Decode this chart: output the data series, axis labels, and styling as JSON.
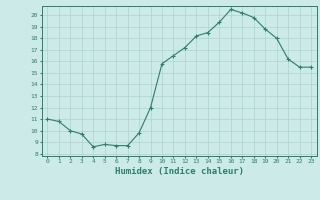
{
  "x": [
    0,
    1,
    2,
    3,
    4,
    5,
    6,
    7,
    8,
    9,
    10,
    11,
    12,
    13,
    14,
    15,
    16,
    17,
    18,
    19,
    20,
    21,
    22,
    23
  ],
  "y": [
    11.0,
    10.8,
    10.0,
    9.7,
    8.6,
    8.8,
    8.7,
    8.7,
    9.8,
    12.0,
    15.8,
    16.5,
    17.2,
    18.2,
    18.5,
    19.4,
    20.5,
    20.2,
    19.8,
    18.8,
    18.0,
    16.2,
    15.5,
    15.5
  ],
  "xlabel": "Humidex (Indice chaleur)",
  "line_color": "#2e7d6e",
  "marker_color": "#2e7d6e",
  "bg_color": "#cceae8",
  "grid_color": "#aad4d0",
  "xlim": [
    -0.5,
    23.5
  ],
  "ylim": [
    7.8,
    20.8
  ],
  "yticks": [
    8,
    9,
    10,
    11,
    12,
    13,
    14,
    15,
    16,
    17,
    18,
    19,
    20
  ],
  "xticks": [
    0,
    1,
    2,
    3,
    4,
    5,
    6,
    7,
    8,
    9,
    10,
    11,
    12,
    13,
    14,
    15,
    16,
    17,
    18,
    19,
    20,
    21,
    22,
    23
  ]
}
